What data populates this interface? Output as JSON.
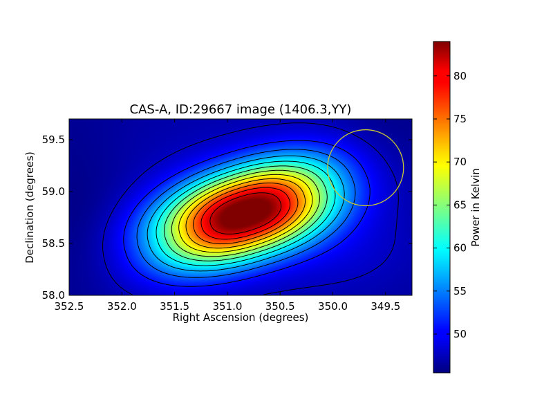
{
  "chart_data": {
    "type": "heatmap",
    "title": "CAS-A, ID:29667 image (1406.3,YY)",
    "xlabel": "Right Ascension (degrees)",
    "ylabel": "Declination (degrees)",
    "colorbar_label": "Power in Kelvin",
    "colormap": "jet",
    "xlim": [
      352.5,
      349.25
    ],
    "ylim": [
      58.0,
      59.7
    ],
    "x_ticks": [
      352.5,
      352.0,
      351.5,
      351.0,
      350.5,
      350.0,
      349.5
    ],
    "x_tick_labels": [
      "352.5",
      "352.0",
      "351.5",
      "351.0",
      "350.5",
      "350.0",
      "349.5"
    ],
    "y_ticks": [
      58.0,
      58.5,
      59.0,
      59.5
    ],
    "y_tick_labels": [
      "58.0",
      "58.5",
      "59.0",
      "59.5"
    ],
    "color_range": [
      45.5,
      84.0
    ],
    "colorbar_ticks": [
      50,
      55,
      60,
      65,
      70,
      75,
      80
    ],
    "colorbar_tick_labels": [
      "50",
      "55",
      "60",
      "65",
      "70",
      "75",
      "80"
    ],
    "peak": {
      "ra": 350.83,
      "dec": 58.79,
      "value": 84.0
    },
    "background_level": 46.0,
    "contour_levels": [
      48,
      51,
      54,
      57,
      60,
      63,
      66,
      69,
      72,
      75,
      78,
      81
    ],
    "beam_circle": {
      "ra": 349.69,
      "dec": 59.23,
      "radius_deg": 0.36,
      "color": "#c8c832"
    },
    "grid": false
  }
}
